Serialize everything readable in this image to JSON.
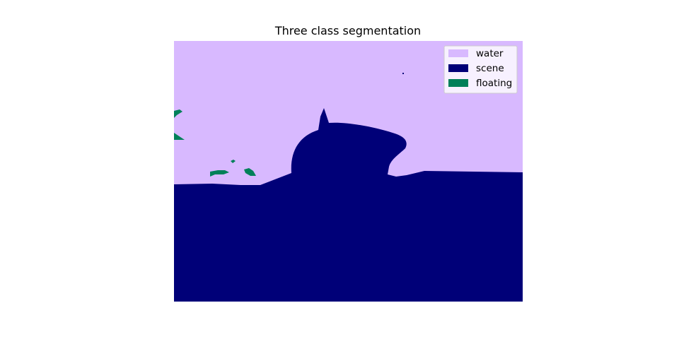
{
  "chart_data": {
    "type": "heatmap",
    "title": "Three class segmentation",
    "xlabel": "",
    "ylabel": "",
    "grid": false,
    "axes_visible": false,
    "legend_placement": "top-right",
    "classes": [
      {
        "name": "water",
        "color": "#d8b9ff"
      },
      {
        "name": "scene",
        "color": "#000078"
      },
      {
        "name": "floating",
        "color": "#008059"
      }
    ]
  }
}
